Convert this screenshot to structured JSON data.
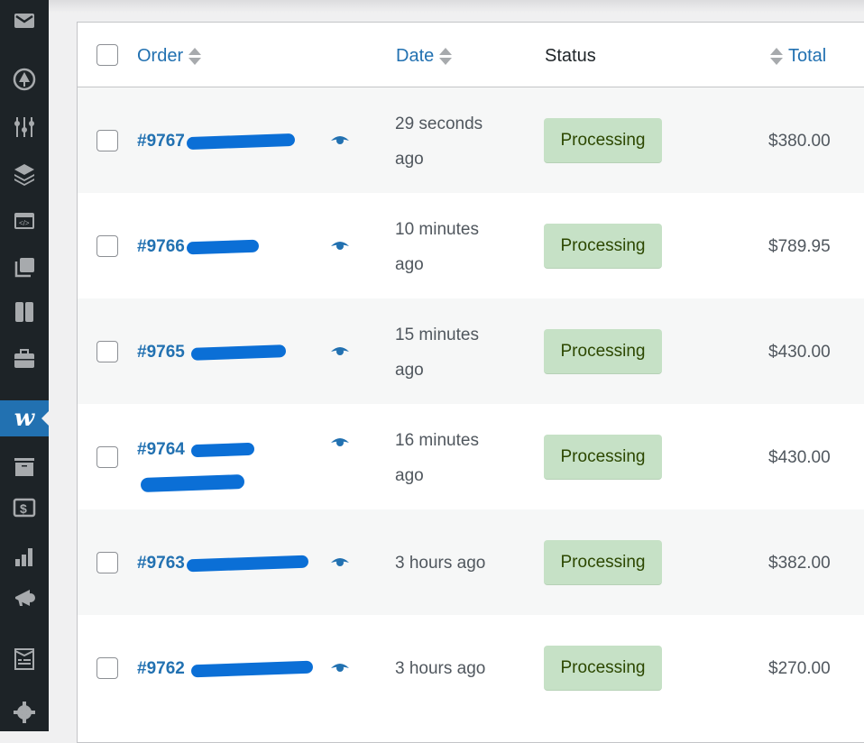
{
  "sidebar": {
    "items": [
      {
        "icon": "mail-icon"
      },
      {
        "icon": "tree-icon"
      },
      {
        "icon": "sliders-icon"
      },
      {
        "icon": "layers-icon"
      },
      {
        "icon": "code-window-icon"
      },
      {
        "icon": "gallery-icon"
      },
      {
        "icon": "columns-icon"
      },
      {
        "icon": "briefcase-icon"
      },
      {
        "icon": "woocommerce-icon",
        "label": "w",
        "active": true
      },
      {
        "icon": "archive-icon"
      },
      {
        "icon": "dollar-icon"
      },
      {
        "icon": "bar-chart-icon"
      },
      {
        "icon": "megaphone-icon"
      },
      {
        "icon": "form-icon"
      },
      {
        "icon": "gear-icon"
      }
    ]
  },
  "table": {
    "headers": {
      "order": "Order",
      "date": "Date",
      "status": "Status",
      "total": "Total"
    },
    "rows": [
      {
        "order": "#9767",
        "date": [
          "29 seconds",
          "ago"
        ],
        "status": "Processing",
        "total": "$380.00"
      },
      {
        "order": "#9766",
        "date": [
          "10 minutes",
          "ago"
        ],
        "status": "Processing",
        "total": "$789.95"
      },
      {
        "order": "#9765",
        "date": [
          "15 minutes",
          "ago"
        ],
        "status": "Processing",
        "total": "$430.00"
      },
      {
        "order": "#9764",
        "date": [
          "16 minutes",
          "ago"
        ],
        "status": "Processing",
        "total": "$430.00"
      },
      {
        "order": "#9763",
        "date": [
          "3 hours ago"
        ],
        "status": "Processing",
        "total": "$382.00"
      },
      {
        "order": "#9762",
        "date": [
          "3 hours ago"
        ],
        "status": "Processing",
        "total": "$270.00"
      }
    ]
  },
  "colors": {
    "accent": "#2271b1",
    "sidebar": "#1d2327",
    "badge_bg": "#c6e1c6",
    "badge_text": "#2c4700"
  }
}
